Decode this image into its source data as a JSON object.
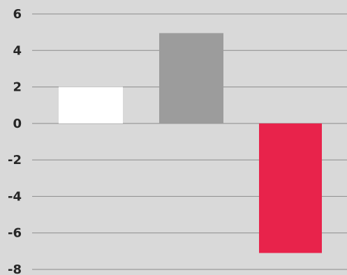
{
  "chart_data": {
    "type": "bar",
    "title": "",
    "xlabel": "",
    "ylabel": "",
    "categories": [
      "",
      "",
      ""
    ],
    "values": [
      2.0,
      4.95,
      -7.1
    ],
    "colors": [
      "#ffffff",
      "#9c9c9c",
      "#e8234b"
    ],
    "ylim": [
      -8,
      6
    ],
    "yticks": [
      6,
      4,
      2,
      0,
      -2,
      -4,
      -6,
      -8
    ],
    "ytick_labels": [
      "6",
      "4",
      "2",
      "0",
      "-2",
      "-4",
      "-6",
      "-8"
    ],
    "grid": true,
    "legend": "none"
  },
  "style": {
    "background": "#d9d9d9",
    "gridline_color": "#8c8c8c",
    "label_color": "#262626"
  }
}
